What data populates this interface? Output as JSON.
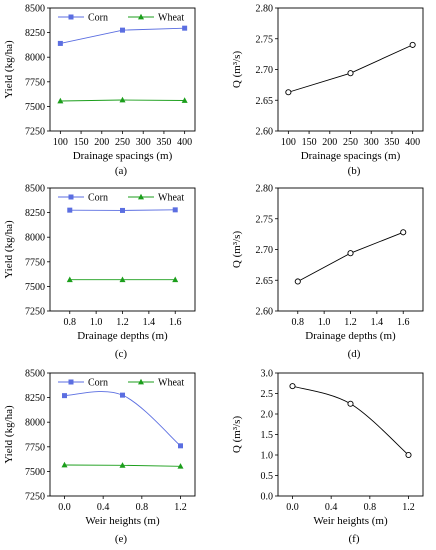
{
  "chart_data": [
    {
      "panel_label": "(a)",
      "type": "line",
      "xlabel": "Drainage spacings (m)",
      "ylabel": "Yield (kg/ha)",
      "xlim": [
        75,
        425
      ],
      "ylim": [
        7250,
        8500
      ],
      "xticks": [
        100,
        150,
        200,
        250,
        300,
        350,
        400
      ],
      "yticks": [
        7250,
        7500,
        7750,
        8000,
        8250,
        8500
      ],
      "x": [
        100,
        250,
        400
      ],
      "series": [
        {
          "name": "Corn",
          "values": [
            8140,
            8275,
            8295
          ],
          "color": "#5b6ee1",
          "marker": "square"
        },
        {
          "name": "Wheat",
          "values": [
            7555,
            7565,
            7560
          ],
          "color": "#1b9e1b",
          "marker": "triangle"
        }
      ],
      "legend": "top"
    },
    {
      "panel_label": "(b)",
      "type": "line",
      "xlabel": "Drainage spacings (m)",
      "ylabel": "Q (m³/s)",
      "xlim": [
        75,
        425
      ],
      "ylim": [
        2.6,
        2.8
      ],
      "xticks": [
        100,
        150,
        200,
        250,
        300,
        350,
        400
      ],
      "yticks": [
        2.6,
        2.65,
        2.7,
        2.75,
        2.8
      ],
      "ytick_labels": [
        "2.60",
        "2.65",
        "2.70",
        "2.75",
        "2.80"
      ],
      "x": [
        100,
        250,
        400
      ],
      "series": [
        {
          "values": [
            2.663,
            2.694,
            2.74
          ],
          "color": "#000000",
          "marker": "circle"
        }
      ]
    },
    {
      "panel_label": "(c)",
      "type": "line",
      "xlabel": "Drainage depths (m)",
      "ylabel": "Yield (kg/ha)",
      "xlim": [
        0.65,
        1.75
      ],
      "ylim": [
        7250,
        8500
      ],
      "xticks": [
        0.8,
        1.0,
        1.2,
        1.4,
        1.6
      ],
      "xtick_labels": [
        "0.8",
        "1.0",
        "1.2",
        "1.4",
        "1.6"
      ],
      "yticks": [
        7250,
        7500,
        7750,
        8000,
        8250,
        8500
      ],
      "x": [
        0.8,
        1.2,
        1.6
      ],
      "series": [
        {
          "name": "Corn",
          "values": [
            8275,
            8272,
            8278
          ],
          "color": "#5b6ee1",
          "marker": "square"
        },
        {
          "name": "Wheat",
          "values": [
            7568,
            7568,
            7568
          ],
          "color": "#1b9e1b",
          "marker": "triangle"
        }
      ],
      "legend": "top"
    },
    {
      "panel_label": "(d)",
      "type": "line",
      "xlabel": "Drainage depths (m)",
      "ylabel": "Q (m³/s)",
      "xlim": [
        0.65,
        1.75
      ],
      "ylim": [
        2.6,
        2.8
      ],
      "xticks": [
        0.8,
        1.0,
        1.2,
        1.4,
        1.6
      ],
      "xtick_labels": [
        "0.8",
        "1.0",
        "1.2",
        "1.4",
        "1.6"
      ],
      "yticks": [
        2.6,
        2.65,
        2.7,
        2.75,
        2.8
      ],
      "ytick_labels": [
        "2.60",
        "2.65",
        "2.70",
        "2.75",
        "2.80"
      ],
      "x": [
        0.8,
        1.2,
        1.6
      ],
      "series": [
        {
          "values": [
            2.648,
            2.694,
            2.728
          ],
          "color": "#000000",
          "marker": "circle"
        }
      ]
    },
    {
      "panel_label": "(e)",
      "type": "line",
      "xlabel": "Weir heights (m)",
      "ylabel": "Yield (kg/ha)",
      "xlim": [
        -0.15,
        1.35
      ],
      "ylim": [
        7250,
        8500
      ],
      "xticks": [
        0.0,
        0.4,
        0.8,
        1.2
      ],
      "xtick_labels": [
        "0.0",
        "0.4",
        "0.8",
        "1.2"
      ],
      "yticks": [
        7250,
        7500,
        7750,
        8000,
        8250,
        8500
      ],
      "x": [
        0.0,
        0.6,
        1.2
      ],
      "series": [
        {
          "name": "Corn",
          "values": [
            8270,
            8275,
            7760
          ],
          "color": "#5b6ee1",
          "marker": "square",
          "smooth": true
        },
        {
          "name": "Wheat",
          "values": [
            7565,
            7562,
            7552
          ],
          "color": "#1b9e1b",
          "marker": "triangle"
        }
      ],
      "legend": "top"
    },
    {
      "panel_label": "(f)",
      "type": "line",
      "xlabel": "Weir heights (m)",
      "ylabel": "Q (m³/s)",
      "xlim": [
        -0.15,
        1.35
      ],
      "ylim": [
        0.0,
        3.0
      ],
      "xticks": [
        0.0,
        0.4,
        0.8,
        1.2
      ],
      "xtick_labels": [
        "0.0",
        "0.4",
        "0.8",
        "1.2"
      ],
      "yticks": [
        0.0,
        0.5,
        1.0,
        1.5,
        2.0,
        2.5,
        3.0
      ],
      "ytick_labels": [
        "0.0",
        "0.5",
        "1.0",
        "1.5",
        "2.0",
        "2.5",
        "3.0"
      ],
      "x": [
        0.0,
        0.6,
        1.2
      ],
      "series": [
        {
          "values": [
            2.68,
            2.25,
            1.0
          ],
          "color": "#000000",
          "marker": "circle",
          "smooth": true
        }
      ]
    }
  ]
}
